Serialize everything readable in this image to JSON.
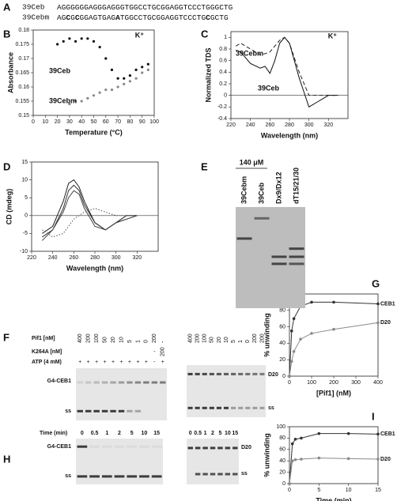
{
  "sequences": {
    "letter": "A",
    "rows": [
      {
        "name": "39Ceb",
        "segments": [
          {
            "text": "AGGGGGGAGGGAGGGTGGCCTGCGGAGGTCCCTGGGCTG",
            "bold": false
          }
        ]
      },
      {
        "name": "39Cebm",
        "segments": [
          {
            "text": "AG",
            "bold": false
          },
          {
            "text": "C",
            "bold": true
          },
          {
            "text": "G",
            "bold": false
          },
          {
            "text": "C",
            "bold": true
          },
          {
            "text": "GGAGTGAG",
            "bold": false
          },
          {
            "text": "A",
            "bold": true
          },
          {
            "text": "TGGCCTGCGGAGGTCCCTG",
            "bold": false
          },
          {
            "text": "C",
            "bold": true
          },
          {
            "text": "GCTG",
            "bold": false
          }
        ]
      }
    ]
  },
  "chart_data": [
    {
      "letter": "B",
      "type": "scatter",
      "x_label": "Temperature (°C)",
      "y_label": "Absorbance",
      "annotation": "K⁺",
      "xlim": [
        0,
        100
      ],
      "xticks": [
        0,
        10,
        20,
        30,
        40,
        50,
        60,
        70,
        80,
        90,
        100
      ],
      "ylim": [
        0.15,
        0.18
      ],
      "yticks": [
        0.15,
        0.155,
        0.16,
        0.165,
        0.17,
        0.175,
        0.18
      ],
      "series": [
        {
          "name": "39Ceb",
          "color": "#111111",
          "x": [
            20,
            25,
            30,
            35,
            40,
            45,
            50,
            55,
            60,
            65,
            70,
            75,
            80,
            85,
            90,
            95
          ],
          "values": [
            0.175,
            0.176,
            0.177,
            0.176,
            0.177,
            0.177,
            0.176,
            0.174,
            0.17,
            0.166,
            0.163,
            0.163,
            0.164,
            0.166,
            0.167,
            0.168
          ]
        },
        {
          "name": "39Cebm",
          "color": "#888888",
          "x": [
            30,
            35,
            40,
            45,
            50,
            55,
            60,
            65,
            70,
            75,
            80,
            85,
            90,
            95
          ],
          "values": [
            0.154,
            0.155,
            0.155,
            0.156,
            0.157,
            0.158,
            0.159,
            0.159,
            0.16,
            0.161,
            0.162,
            0.163,
            0.165,
            0.166
          ]
        }
      ]
    },
    {
      "letter": "C",
      "type": "line",
      "x_label": "Wavelength (nm)",
      "y_label": "Normalized TDS",
      "annotation": "K⁺",
      "zero_line": true,
      "xlim": [
        220,
        340
      ],
      "xticks": [
        220,
        240,
        260,
        280,
        300,
        320
      ],
      "ylim": [
        -0.4,
        1.1
      ],
      "yticks": [
        -0.4,
        -0.2,
        0,
        0.2,
        0.4,
        0.6,
        0.8,
        1
      ],
      "series": [
        {
          "name": "39Cebm",
          "color": "#222222",
          "style": "dashed",
          "x": [
            225,
            230,
            240,
            250,
            255,
            260,
            265,
            270,
            275,
            280,
            290,
            300,
            310,
            320,
            330
          ],
          "values": [
            0.85,
            0.9,
            0.8,
            0.7,
            0.72,
            0.75,
            0.85,
            0.95,
            1.0,
            0.9,
            0.4,
            0,
            0,
            0,
            0
          ]
        },
        {
          "name": "39Ceb",
          "color": "#111111",
          "style": "solid",
          "x": [
            225,
            230,
            240,
            250,
            255,
            260,
            265,
            270,
            275,
            280,
            290,
            300,
            310,
            320,
            330
          ],
          "values": [
            0.78,
            0.75,
            0.55,
            0.47,
            0.5,
            0.38,
            0.6,
            0.9,
            1.0,
            0.9,
            0.3,
            -0.2,
            -0.1,
            0,
            0
          ]
        }
      ]
    },
    {
      "letter": "D",
      "type": "line",
      "x_label": "Wavelength (nm)",
      "y_label": "CD (mdeg)",
      "zero_line": true,
      "xlim": [
        220,
        340
      ],
      "xticks": [
        220,
        240,
        260,
        280,
        300,
        320
      ],
      "ylim": [
        -10,
        15
      ],
      "yticks": [
        -10,
        -5,
        0,
        5,
        10,
        15
      ],
      "series": [
        {
          "color": "#222222",
          "style": "solid",
          "x": [
            230,
            240,
            250,
            255,
            260,
            265,
            270,
            280,
            290,
            300,
            310,
            320
          ],
          "values": [
            -5,
            -3,
            4,
            9,
            10,
            8,
            4,
            -2,
            -4,
            -2,
            0,
            0
          ]
        },
        {
          "color": "#333333",
          "style": "solid",
          "x": [
            230,
            240,
            250,
            255,
            260,
            265,
            270,
            280,
            290,
            300,
            310,
            320
          ],
          "values": [
            -6,
            -4,
            2,
            7,
            8.5,
            7,
            3,
            -2,
            -4,
            -2,
            -1,
            0
          ]
        },
        {
          "color": "#444444",
          "style": "solid",
          "x": [
            230,
            240,
            250,
            255,
            260,
            265,
            270,
            280,
            290,
            300,
            310,
            320
          ],
          "values": [
            -7,
            -4,
            1,
            5,
            7,
            6,
            2,
            -3,
            -4,
            -2,
            -1,
            0
          ]
        },
        {
          "color": "#555555",
          "style": "dotted",
          "x": [
            230,
            240,
            250,
            255,
            260,
            265,
            270,
            280,
            290,
            300,
            310,
            320
          ],
          "values": [
            -4,
            -6,
            -5,
            -3,
            -1,
            0,
            1,
            2,
            1,
            0,
            0,
            0
          ]
        }
      ]
    },
    {
      "letter": "G",
      "type": "line",
      "markers": true,
      "x_label": "[Pif1] (nM)",
      "y_label": "% unwinding",
      "xlim": [
        0,
        400
      ],
      "xticks": [
        0,
        100,
        200,
        300,
        400
      ],
      "ylim": [
        0,
        100
      ],
      "yticks": [
        0,
        20,
        40,
        60,
        80,
        100
      ],
      "series": [
        {
          "name": "CEB1",
          "color": "#333333",
          "style": "solid",
          "x": [
            0,
            10,
            20,
            50,
            100,
            200,
            400
          ],
          "values": [
            0,
            55,
            70,
            85,
            90,
            90,
            88
          ]
        },
        {
          "name": "D20",
          "color": "#8a8a8a",
          "style": "solid",
          "x": [
            0,
            10,
            20,
            50,
            100,
            200,
            400
          ],
          "values": [
            0,
            18,
            30,
            45,
            52,
            57,
            65
          ]
        }
      ]
    },
    {
      "letter": "I",
      "type": "line",
      "markers": true,
      "x_label": "Time (min)",
      "y_label": "% unwinding",
      "xlim": [
        0,
        15
      ],
      "xticks": [
        0,
        5,
        10,
        15
      ],
      "ylim": [
        0,
        100
      ],
      "yticks": [
        0,
        20,
        40,
        60,
        80,
        100
      ],
      "series": [
        {
          "name": "CEB1",
          "color": "#333333",
          "style": "solid",
          "x": [
            0,
            0.5,
            1,
            2,
            5,
            10,
            15
          ],
          "values": [
            0,
            70,
            78,
            80,
            88,
            88,
            87
          ]
        },
        {
          "name": "D20",
          "color": "#8a8a8a",
          "style": "solid",
          "x": [
            0,
            0.5,
            1,
            2,
            5,
            10,
            15
          ],
          "values": [
            0,
            40,
            42,
            43,
            45,
            44,
            43
          ]
        }
      ]
    }
  ],
  "gel_e": {
    "letter": "E",
    "concentration": "140 μM",
    "lanes": [
      "39Cebm",
      "39Ceb",
      "Dx9/Dx12",
      "dT15/21/30"
    ]
  },
  "gel_f": {
    "letter": "F",
    "row_labels": [
      "Pif1 [nM]",
      "K264A [nM]",
      "ATP (4 mM)"
    ],
    "left": {
      "rows": [
        [
          "400",
          "200",
          "100",
          "50",
          "20",
          "10",
          "5",
          "1",
          "0",
          "200",
          "-"
        ],
        [
          null,
          null,
          null,
          null,
          null,
          null,
          null,
          null,
          null,
          "-",
          "200"
        ],
        [
          "+",
          "+",
          "+",
          "+",
          "+",
          "+",
          "+",
          "+",
          "+",
          "-",
          "+"
        ]
      ],
      "bands": [
        "G4-CEB1",
        "ss"
      ]
    },
    "right": {
      "rows": [
        [
          "400",
          "200",
          "100",
          "50",
          "20",
          "10",
          "5",
          "1",
          "0",
          "200",
          "200"
        ]
      ],
      "bands": [
        "D20",
        "ss"
      ]
    }
  },
  "gel_h": {
    "letter": "H",
    "row_label": "Time (min)",
    "left": {
      "lanes": [
        "0",
        "0.5",
        "1",
        "2",
        "5",
        "10",
        "15"
      ],
      "bands": [
        "G4-CEB1",
        "ss"
      ]
    },
    "right": {
      "lanes": [
        "0",
        "0.5",
        "1",
        "2",
        "5",
        "10",
        "15"
      ],
      "bands": [
        "D20",
        "ss"
      ]
    }
  }
}
